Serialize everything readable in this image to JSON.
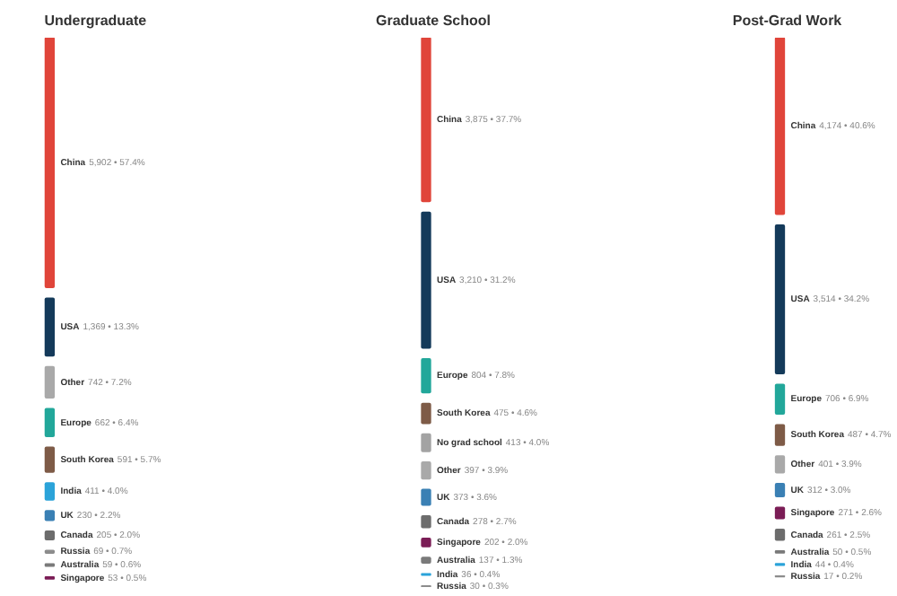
{
  "chart_data": [
    {
      "type": "other",
      "title": "Undergraduate",
      "categories": [
        "China",
        "USA",
        "Other",
        "Europe",
        "South Korea",
        "India",
        "UK",
        "Canada",
        "Russia",
        "Australia",
        "Singapore"
      ],
      "values": [
        5902,
        1369,
        742,
        662,
        591,
        411,
        230,
        205,
        69,
        59,
        53
      ],
      "value_labels": [
        "5,902 • 57.4%",
        "1,369 • 13.3%",
        "742 • 7.2%",
        "662 • 6.4%",
        "591 • 5.7%",
        "411 • 4.0%",
        "230 • 2.2%",
        "205 • 2.0%",
        "69 • 0.7%",
        "59 • 0.6%",
        "53 • 0.5%"
      ],
      "colors": [
        "#e0453a",
        "#143a5a",
        "#a9a9a9",
        "#22a79a",
        "#7e5b47",
        "#2ba3d9",
        "#3a80b4",
        "#6c6c6c",
        "#8c8c8c",
        "#7a7a7a",
        "#7b1d56"
      ]
    },
    {
      "type": "other",
      "title": "Graduate School",
      "categories": [
        "China",
        "USA",
        "Europe",
        "South Korea",
        "No grad school",
        "Other",
        "UK",
        "Canada",
        "Singapore",
        "Australia",
        "India",
        "Russia"
      ],
      "values": [
        3875,
        3210,
        804,
        475,
        413,
        397,
        373,
        278,
        202,
        137,
        36,
        30
      ],
      "value_labels": [
        "3,875 • 37.7%",
        "3,210 • 31.2%",
        "804 • 7.8%",
        "475 • 4.6%",
        "413 • 4.0%",
        "397 • 3.9%",
        "373 • 3.6%",
        "278 • 2.7%",
        "202 • 2.0%",
        "137 • 1.3%",
        "36 • 0.4%",
        "30 • 0.3%"
      ],
      "colors": [
        "#e0453a",
        "#143a5a",
        "#22a79a",
        "#7e5b47",
        "#a3a3a3",
        "#a9a9a9",
        "#3a80b4",
        "#6c6c6c",
        "#7b1d56",
        "#7a7a7a",
        "#2ba3d9",
        "#8c8c8c"
      ]
    },
    {
      "type": "other",
      "title": "Post-Grad Work",
      "categories": [
        "China",
        "USA",
        "Europe",
        "South Korea",
        "Other",
        "UK",
        "Singapore",
        "Canada",
        "Australia",
        "India",
        "Russia"
      ],
      "values": [
        4174,
        3514,
        706,
        487,
        401,
        312,
        271,
        261,
        50,
        44,
        17
      ],
      "value_labels": [
        "4,174 • 40.6%",
        "3,514 • 34.2%",
        "706 • 6.9%",
        "487 • 4.7%",
        "401 • 3.9%",
        "312 • 3.0%",
        "271 • 2.6%",
        "261 • 2.5%",
        "50 • 0.5%",
        "44 • 0.4%",
        "17 • 0.2%"
      ],
      "colors": [
        "#e0453a",
        "#143a5a",
        "#22a79a",
        "#7e5b47",
        "#a9a9a9",
        "#3a80b4",
        "#7b1d56",
        "#6c6c6c",
        "#7a7a7a",
        "#2ba3d9",
        "#8c8c8c"
      ]
    }
  ]
}
